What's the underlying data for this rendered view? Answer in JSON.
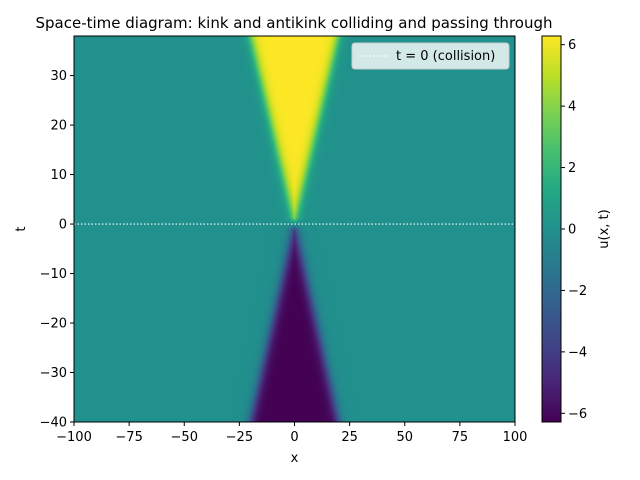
{
  "chart_data": {
    "type": "heatmap",
    "title": "Space-time diagram: kink and antikink colliding and passing through",
    "xlabel": "x",
    "ylabel": "t",
    "xlim": [
      -100,
      100
    ],
    "ylim": [
      -40,
      38
    ],
    "x_ticks": [
      -100,
      -75,
      -50,
      -25,
      0,
      25,
      50,
      75,
      100
    ],
    "y_ticks": [
      -40,
      -30,
      -20,
      -10,
      0,
      10,
      20,
      30
    ],
    "colorbar": {
      "label": "u(x, t)",
      "range": [
        -6.283,
        6.283
      ],
      "ticks": [
        -6,
        -4,
        -2,
        0,
        2,
        4,
        6
      ],
      "colormap": "viridis"
    },
    "field": {
      "description": "sine-Gordon kink-antikink collision at t=0",
      "background_value": 0,
      "lower_wedge": {
        "value": -6.283,
        "t_range": [
          -40,
          0
        ],
        "half_width_at_tmin": 20
      },
      "upper_wedge": {
        "value": 6.283,
        "t_range": [
          0,
          38
        ],
        "half_width_at_tmax": 20
      },
      "kink_width": 1.3
    },
    "reference_line": {
      "t": 0,
      "style": "dotted",
      "color": "#ffffff"
    },
    "legend": {
      "entries": [
        "t = 0 (collision)"
      ],
      "position": "top-right"
    }
  }
}
